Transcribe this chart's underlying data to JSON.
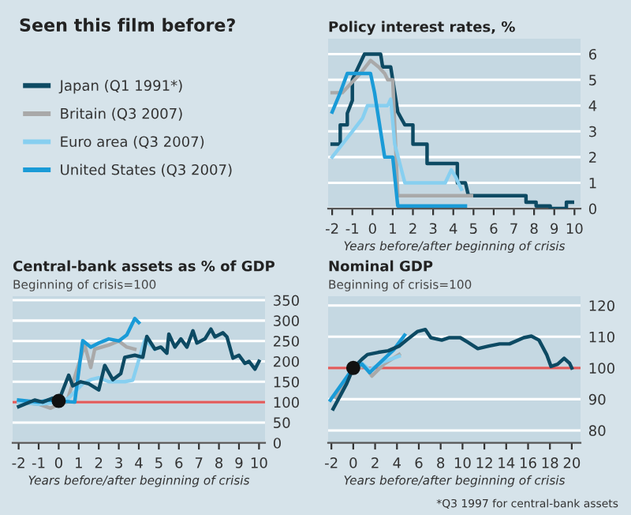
{
  "chart_data": [
    {
      "type": "other",
      "title": "Seen this film before?"
    },
    {
      "type": "line",
      "title": "Policy interest rates, %",
      "xlabel": "Years before/after beginning of crisis",
      "xlim": [
        -2.2,
        10.3
      ],
      "ylim": [
        0,
        6.6
      ],
      "xticks": [
        -2,
        -1,
        0,
        1,
        2,
        3,
        4,
        5,
        6,
        7,
        8,
        9,
        10
      ],
      "yticks": [
        0,
        1,
        2,
        3,
        4,
        5,
        6
      ],
      "grid": "y",
      "legend": "left",
      "series": [
        {
          "name": "Japan (Q1 1991*)",
          "color": "#0d4a63",
          "x": [
            -2,
            -1.6,
            -1.6,
            -1.25,
            -1.25,
            -1,
            -1,
            -0.4,
            0.4,
            0.5,
            0.9,
            1,
            1.25,
            1.6,
            1.6,
            2,
            2,
            2.7,
            2.7,
            4.2,
            4.2,
            4.6,
            4.75,
            7.6,
            7.6,
            8.1,
            8.1,
            8.8,
            8.8,
            9.6,
            9.6,
            9.9
          ],
          "values": [
            2.5,
            2.5,
            3.25,
            3.25,
            3.7,
            4.2,
            5,
            6,
            6,
            5.5,
            5.5,
            5,
            3.75,
            3.25,
            3.25,
            3.25,
            2.5,
            2.5,
            1.75,
            1.75,
            1,
            1,
            0.5,
            0.5,
            0.25,
            0.25,
            0.1,
            0.1,
            0,
            0,
            0.25,
            0.25
          ]
        },
        {
          "name": "Britain (Q3 2007)",
          "color": "#a9a9a9",
          "x": [
            -2,
            -1.5,
            -1.2,
            -0.6,
            -0.1,
            0.3,
            0.6,
            0.75,
            1,
            1.25,
            4.9
          ],
          "values": [
            4.5,
            4.5,
            4.75,
            5.25,
            5.75,
            5.5,
            5.25,
            5,
            5,
            0.5,
            0.5
          ]
        },
        {
          "name": "Euro area (Q3 2007)",
          "color": "#87cff0",
          "x": [
            -2,
            -1.5,
            -1,
            -0.5,
            -0.25,
            0.75,
            0.9,
            1.1,
            1.6,
            3.6,
            3.9,
            4.1,
            4.4
          ],
          "values": [
            2,
            2.5,
            3,
            3.5,
            4,
            4,
            4.25,
            2.5,
            1,
            1,
            1.5,
            1.25,
            0.75
          ]
        },
        {
          "name": "United States (Q3 2007)",
          "color": "#1a9bd7",
          "x": [
            -2,
            -1.6,
            -1.25,
            -0.1,
            0.1,
            0.4,
            0.6,
            1,
            1.25,
            4.6
          ],
          "values": [
            3.75,
            4.5,
            5.25,
            5.25,
            4.5,
            3,
            2,
            2,
            0.1,
            0.1
          ]
        }
      ]
    },
    {
      "type": "line",
      "title": "Central-bank assets as % of GDP",
      "subtitle": "Beginning of crisis=100",
      "xlabel": "Years before/after beginning of crisis",
      "xlim": [
        -2.3,
        10.3
      ],
      "ylim": [
        0,
        360
      ],
      "xticks": [
        -2,
        -1,
        0,
        1,
        2,
        3,
        4,
        5,
        6,
        7,
        8,
        9,
        10
      ],
      "yticks": [
        0,
        50,
        100,
        150,
        200,
        250,
        300,
        350
      ],
      "grid": "y",
      "ref_lines": [
        {
          "axis": "y",
          "value": 100,
          "color": "#e05a5a"
        }
      ],
      "series": [
        {
          "color": "#a9a9a9",
          "x": [
            -2,
            -1,
            -0.4,
            0,
            0.4,
            1.3,
            1.6,
            1.8,
            2.5,
            3,
            3.4,
            3.8
          ],
          "values": [
            100,
            95,
            85,
            95,
            100,
            240,
            185,
            230,
            240,
            250,
            235,
            230
          ]
        },
        {
          "color": "#87cff0",
          "x": [
            -2,
            -1,
            0,
            0.5,
            1.2,
            1.6,
            2,
            2.5,
            3.3,
            3.7,
            4.3,
            4.8
          ],
          "values": [
            100,
            95,
            100,
            110,
            145,
            155,
            160,
            150,
            150,
            154,
            253,
            230
          ]
        },
        {
          "color": "#1a9bd7",
          "x": [
            -2,
            -1,
            -0.5,
            0.8,
            1.2,
            1.6,
            2,
            2.5,
            3,
            3.4,
            3.8,
            4
          ],
          "values": [
            105,
            100,
            105,
            100,
            251,
            235,
            245,
            255,
            250,
            265,
            305,
            295
          ]
        },
        {
          "color": "#0d4a63",
          "x": [
            -2,
            -1.2,
            -0.8,
            -0.3,
            0,
            0.5,
            0.7,
            1.1,
            1.5,
            2,
            2.3,
            2.7,
            3.1,
            3.3,
            3.8,
            4.2,
            4.4,
            4.8,
            5.1,
            5.4,
            5.5,
            5.8,
            6.1,
            6.4,
            6.7,
            6.9,
            7.3,
            7.6,
            7.8,
            8.2,
            8.4,
            8.7,
            9,
            9.3,
            9.5,
            9.8,
            10
          ],
          "values": [
            89,
            105,
            100,
            110,
            103,
            166,
            140,
            150,
            145,
            130,
            190,
            155,
            170,
            210,
            215,
            210,
            261,
            230,
            235,
            220,
            267,
            235,
            255,
            235,
            275,
            245,
            255,
            279,
            260,
            270,
            260,
            208,
            215,
            195,
            200,
            181,
            200
          ]
        },
        {
          "type": "scatter",
          "color": "#111111",
          "x": [
            0
          ],
          "values": [
            103
          ]
        }
      ]
    },
    {
      "type": "line",
      "title": "Nominal GDP",
      "subtitle": "Beginning of crisis=100",
      "xlabel": "Years before/after beginning of crisis",
      "xlim": [
        -2.3,
        20.8
      ],
      "ylim": [
        76,
        123
      ],
      "xticks": [
        -2,
        0,
        2,
        4,
        6,
        8,
        10,
        12,
        14,
        16,
        18,
        20
      ],
      "yticks": [
        80,
        90,
        100,
        110,
        120
      ],
      "grid": "y",
      "ref_lines": [
        {
          "axis": "y",
          "value": 100,
          "color": "#e05a5a"
        }
      ],
      "annotations": [
        "*Q3 1997 for central-bank assets"
      ],
      "series": [
        {
          "color": "#a9a9a9",
          "x": [
            -1.6,
            -0.6,
            0,
            1.1,
            1.7,
            2.8,
            4.2
          ],
          "values": [
            90.5,
            95.8,
            100,
            100.5,
            97.4,
            101.2,
            104.3
          ]
        },
        {
          "color": "#87cff0",
          "x": [
            0,
            0.8,
            1.5,
            2.8,
            4.2
          ],
          "values": [
            100,
            101.5,
            99.4,
            102,
            103.8
          ]
        },
        {
          "color": "#1a9bd7",
          "x": [
            -2.1,
            0,
            0.8,
            1.5,
            2.3,
            3.7,
            4.7
          ],
          "values": [
            89.7,
            100,
            101.2,
            98.5,
            101.2,
            105.8,
            110.5
          ]
        },
        {
          "color": "#0d4a63",
          "x": [
            -1.84,
            -1.1,
            -0.6,
            0,
            0.8,
            1.3,
            2.3,
            3.2,
            4.2,
            4.9,
            5.9,
            6.6,
            7.1,
            8.1,
            8.8,
            9.8,
            10.5,
            11.4,
            12.4,
            13.4,
            14.3,
            15.6,
            16.3,
            17,
            17.7,
            18.1,
            18.7,
            19.3,
            19.8,
            20
          ],
          "values": [
            86.9,
            91.7,
            95,
            100,
            102.8,
            104.3,
            105,
            105.5,
            107,
            109,
            111.7,
            112.3,
            109.7,
            108.9,
            109.7,
            109.7,
            108.2,
            106.2,
            107,
            107.7,
            107.7,
            109.7,
            110.2,
            108.9,
            104.3,
            100.5,
            101.2,
            103.1,
            101.5,
            100
          ]
        },
        {
          "type": "scatter",
          "color": "#111111",
          "x": [
            0
          ],
          "values": [
            100
          ]
        }
      ]
    }
  ]
}
